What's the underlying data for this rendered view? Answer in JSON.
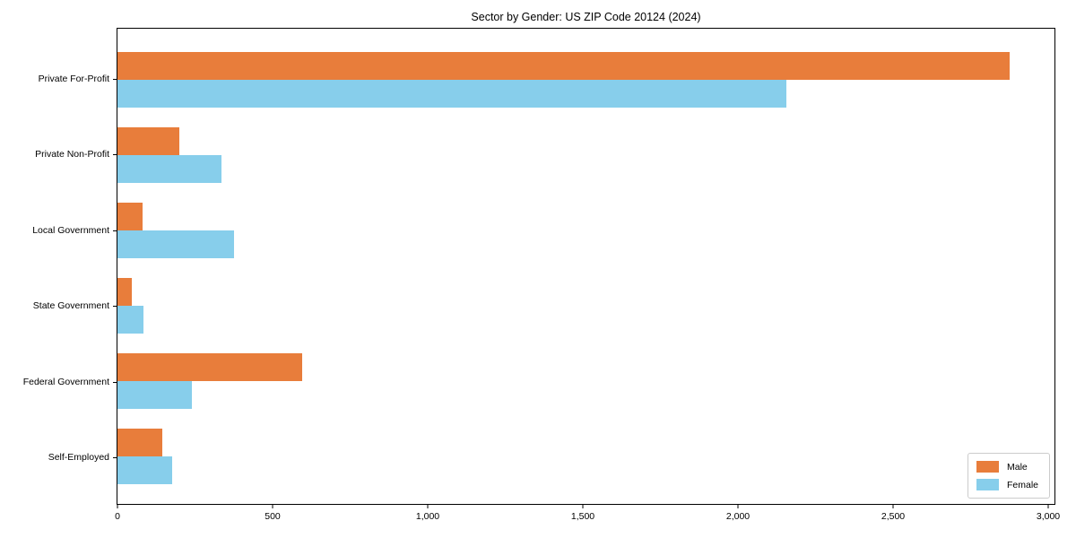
{
  "chart_data": {
    "type": "bar",
    "orientation": "horizontal",
    "title": "Sector by Gender: US ZIP Code 20124 (2024)",
    "categories": [
      "Private For-Profit",
      "Private Non-Profit",
      "Local Government",
      "State Government",
      "Federal Government",
      "Self-Employed"
    ],
    "series": [
      {
        "name": "Male",
        "color": "#E87D3B",
        "values": [
          2875,
          200,
          80,
          45,
          595,
          145
        ]
      },
      {
        "name": "Female",
        "color": "#87CEEB",
        "values": [
          2155,
          335,
          375,
          85,
          240,
          175
        ]
      }
    ],
    "xlabel": "",
    "ylabel": "",
    "xlim": [
      0,
      3000
    ],
    "xticks": [
      0,
      500,
      1000,
      1500,
      2000,
      2500,
      3000
    ],
    "xtick_labels": [
      "0",
      "500",
      "1,000",
      "1,500",
      "2,000",
      "2,500",
      "3,000"
    ],
    "legend": {
      "position": "lower right",
      "entries": [
        "Male",
        "Female"
      ]
    },
    "grid": false,
    "background_color": "#ffffff",
    "axis_color": "#000000"
  }
}
